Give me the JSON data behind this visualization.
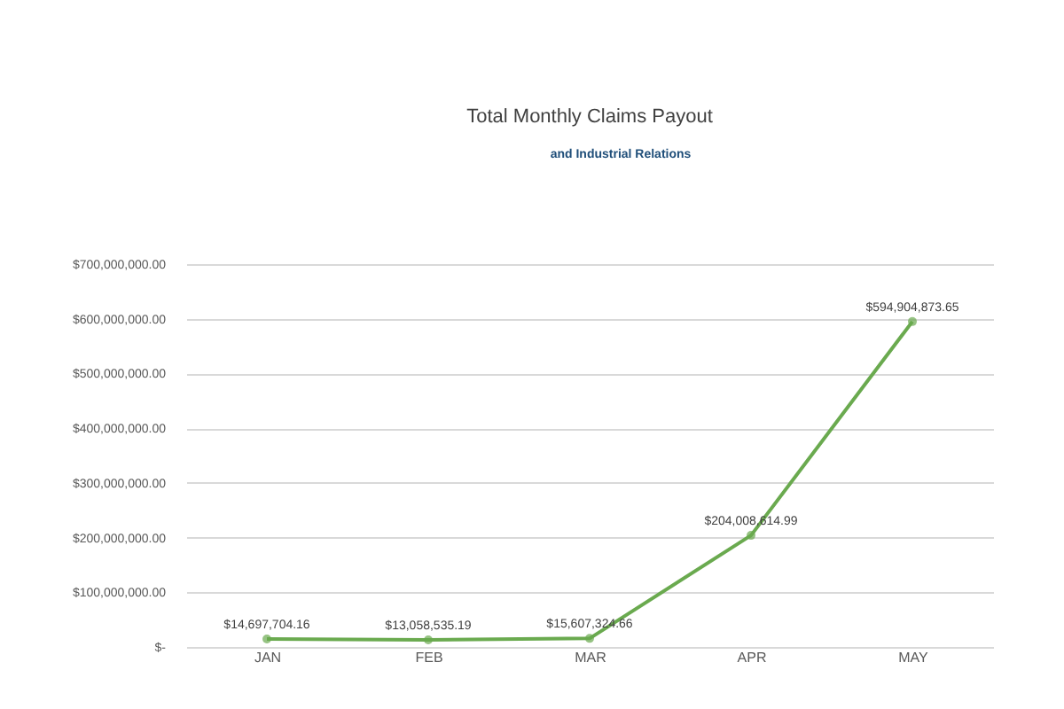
{
  "chart_data": {
    "type": "line",
    "title": "Total Monthly Claims Payout",
    "annotations": [
      "and Industrial Relations"
    ],
    "categories": [
      "JAN",
      "FEB",
      "MAR",
      "APR",
      "MAY"
    ],
    "series": [
      {
        "color": "#6aaa4f",
        "values": [
          14697704.16,
          13058535.19,
          15607324.66,
          204008614.99,
          594904873.65
        ],
        "value_labels": [
          "$14,697,704.16",
          "$13,058,535.19",
          "$15,607,324.66",
          "$204,008,614.99",
          "$594,904,873.65"
        ]
      }
    ],
    "ylim": [
      0,
      700000000
    ],
    "yticks": [
      {
        "value": 0,
        "label": "$-"
      },
      {
        "value": 100000000,
        "label": "$100,000,000.00"
      },
      {
        "value": 200000000,
        "label": "$200,000,000.00"
      },
      {
        "value": 300000000,
        "label": "$300,000,000.00"
      },
      {
        "value": 400000000,
        "label": "$400,000,000.00"
      },
      {
        "value": 500000000,
        "label": "$500,000,000.00"
      },
      {
        "value": 600000000,
        "label": "$600,000,000.00"
      },
      {
        "value": 700000000,
        "label": "$700,000,000.00"
      }
    ],
    "grid": "y",
    "marker": "circle",
    "line_style": "solid"
  }
}
